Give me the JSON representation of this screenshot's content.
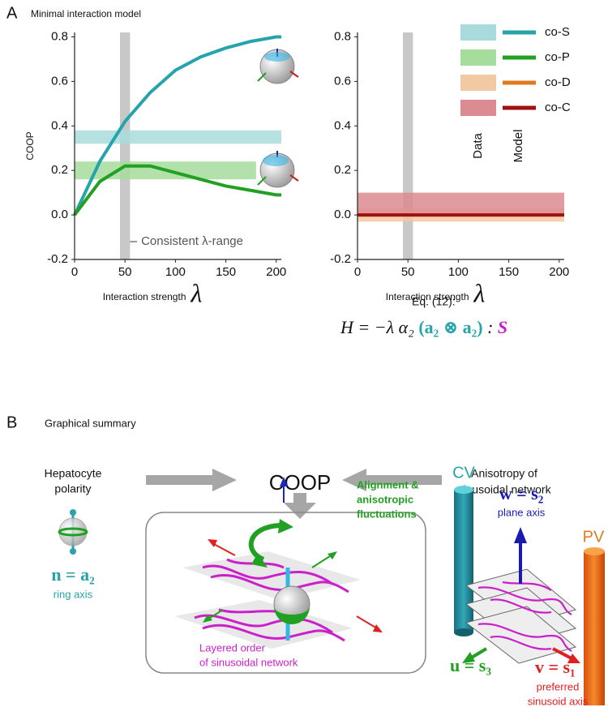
{
  "panel_a": {
    "label": "A"
  },
  "chart_data": [
    {
      "type": "line",
      "title": "Minimal interaction model",
      "ylabel": "COOP",
      "xlabel": "Interaction strength",
      "xlabel_symbol": "λ",
      "x": [
        0,
        25,
        50,
        75,
        100,
        125,
        150,
        175,
        200,
        205
      ],
      "xlim": [
        0,
        205
      ],
      "ylim": [
        -0.2,
        0.82
      ],
      "xticks": [
        0,
        50,
        100,
        150,
        200
      ],
      "yticks": [
        -0.2,
        {
          "value": 0,
          "label": "0.0"
        },
        0.2,
        0.4,
        0.6,
        0.8
      ],
      "highlight": {
        "xrange": [
          45,
          55
        ],
        "label": "Consistent λ-range"
      },
      "series": [
        {
          "color": "#27a3ab",
          "band_color": "#a8dcdc",
          "band": [
            0.32,
            0.38
          ],
          "band_xlim": [
            0,
            205
          ],
          "values": [
            0,
            0.24,
            0.42,
            0.55,
            0.65,
            0.71,
            0.75,
            0.78,
            0.8,
            0.8
          ]
        },
        {
          "color": "#21a021",
          "band_color": "#a6dc9c",
          "band": [
            0.16,
            0.24
          ],
          "band_xlim": [
            0,
            180
          ],
          "values": [
            0,
            0.15,
            0.22,
            0.22,
            0.19,
            0.16,
            0.13,
            0.11,
            0.09,
            0.09
          ]
        }
      ]
    },
    {
      "type": "line",
      "xlabel": "Interaction strength",
      "xlabel_symbol": "λ",
      "x": [
        0,
        205
      ],
      "xlim": [
        0,
        205
      ],
      "ylim": [
        -0.2,
        0.82
      ],
      "xticks": [
        0,
        50,
        100,
        150,
        200
      ],
      "yticks": [
        -0.2,
        {
          "value": 0,
          "label": "0.0"
        },
        0.2,
        0.4,
        0.6,
        0.8
      ],
      "highlight": {
        "xrange": [
          45,
          55
        ]
      },
      "series": [
        {
          "color": "#e07a22",
          "band_color": "#f1c9a2",
          "band": [
            -0.03,
            0.03
          ],
          "band_xlim": [
            0,
            205
          ],
          "values": [
            0,
            0
          ]
        },
        {
          "color": "#a01212",
          "band_color": "#dc8b92",
          "band": [
            0,
            0.1
          ],
          "band_xlim": [
            0,
            205
          ],
          "values": [
            0,
            0
          ]
        }
      ],
      "legend": {
        "position": "upper right",
        "data_label": "Data",
        "model_label": "Model",
        "entries": [
          {
            "name": "co-S",
            "color": "#27a3ab",
            "band_color": "#a8dcdc"
          },
          {
            "name": "co-P",
            "color": "#21a021",
            "band_color": "#a6dc9c"
          },
          {
            "name": "co-D",
            "color": "#e07a22",
            "band_color": "#f1c9a2"
          },
          {
            "name": "co-C",
            "color": "#a01212",
            "band_color": "#dc8b92"
          }
        ]
      }
    }
  ],
  "equation": {
    "ref": "Eq. (12):",
    "lhs": "H = −λ α₂ ",
    "term": "(a₂ ⊗ a₂)",
    "colon": " : ",
    "tensor": "S"
  },
  "panel_b": {
    "label": "B",
    "title": "Graphical summary",
    "left": [
      "Hepatocyte",
      "polarity"
    ],
    "center": "COOP",
    "right": [
      "Anisotropy of",
      "sinusoidal network"
    ],
    "alignment": [
      "Alignment &",
      "anisotropic",
      "fluctuations"
    ],
    "layered": [
      "Layered order",
      "of sinusoidal network"
    ],
    "n_axis": "n = a₂",
    "n_caption": "ring axis",
    "cv": "CV",
    "pv": "PV",
    "w_axis": "w = s₂",
    "w_caption": "plane axis",
    "u_axis": "u = s₃",
    "v_axis": "v = s₁",
    "v_caption": [
      "preferred",
      "sinusoid axis"
    ]
  }
}
